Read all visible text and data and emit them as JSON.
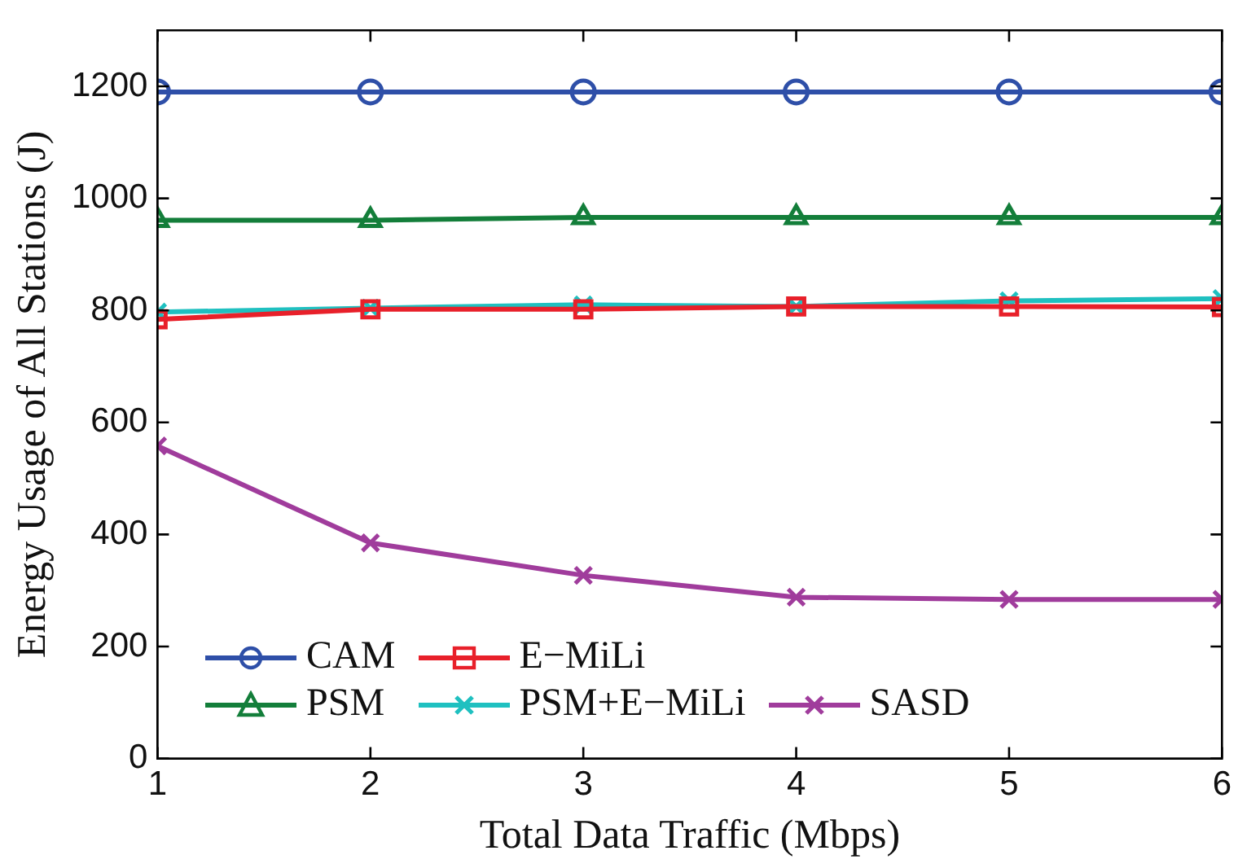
{
  "chart_data": {
    "type": "line",
    "xlabel": "Total Data Traffic (Mbps)",
    "ylabel": "Energy Usage of All Stations (J)",
    "x": [
      1,
      2,
      3,
      4,
      5,
      6
    ],
    "xlim": [
      1,
      6
    ],
    "xticks": [
      1,
      2,
      3,
      4,
      5,
      6
    ],
    "ylim": [
      0,
      1300
    ],
    "yticks": [
      0,
      200,
      400,
      600,
      800,
      1000,
      1200
    ],
    "grid": false,
    "legend": "bottom left",
    "line_style": "solid",
    "series": [
      {
        "name": "CAM",
        "color": "#2e4fa8",
        "marker": "circle",
        "values": [
          1190,
          1190,
          1190,
          1190,
          1190,
          1190
        ]
      },
      {
        "name": "E−MiLi",
        "color": "#e8202a",
        "marker": "square",
        "values": [
          784,
          802,
          802,
          807,
          807,
          806
        ]
      },
      {
        "name": "PSM",
        "color": "#137e3a",
        "marker": "triangle",
        "values": [
          961,
          961,
          966,
          966,
          966,
          966
        ]
      },
      {
        "name": "PSM+E−MiLi",
        "color": "#1fc0c0",
        "marker": "cross",
        "values": [
          797,
          804,
          810,
          807,
          817,
          821
        ]
      },
      {
        "name": "SASD",
        "color": "#a03c9c",
        "marker": "cross",
        "values": [
          558,
          385,
          327,
          288,
          284,
          284
        ]
      }
    ]
  }
}
